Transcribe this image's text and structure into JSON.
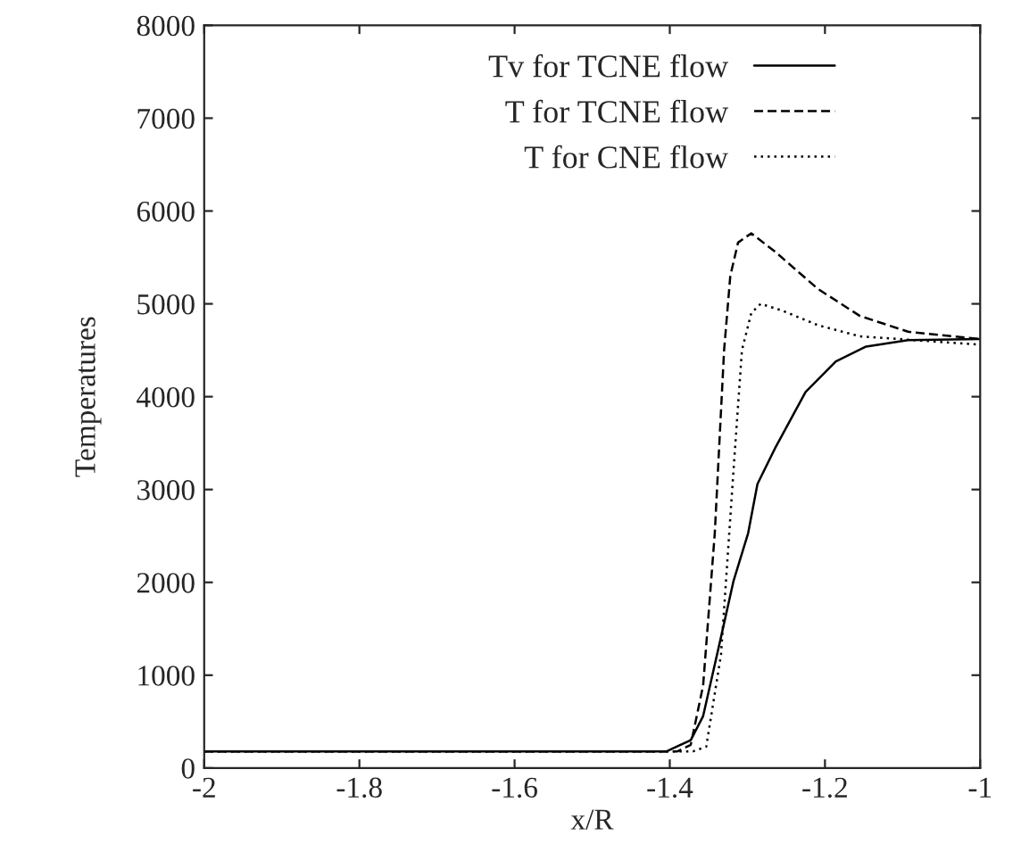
{
  "chart_data": {
    "type": "line",
    "xlabel": "x/R",
    "ylabel": "Temperatures",
    "xlim": [
      -2,
      -1
    ],
    "ylim": [
      0,
      8000
    ],
    "xticks": [
      -2,
      -1.8,
      -1.6,
      -1.4,
      -1.2,
      -1
    ],
    "yticks": [
      0,
      1000,
      2000,
      3000,
      4000,
      5000,
      6000,
      7000,
      8000
    ],
    "grid": false,
    "legend": "top right",
    "series": [
      {
        "name": "Tv for TCNE flow",
        "color": "#000000",
        "line_style": "solid",
        "x": [
          -2,
          -1.404,
          -1.373,
          -1.357,
          -1.334,
          -1.318,
          -1.299,
          -1.287,
          -1.264,
          -1.225,
          -1.186,
          -1.147,
          -1.093,
          -1.0
        ],
        "values": [
          180,
          180,
          300,
          560,
          1410,
          2010,
          2530,
          3060,
          3450,
          4050,
          4380,
          4540,
          4610,
          4620
        ]
      },
      {
        "name": "T for TCNE flow",
        "color": "#000000",
        "line_style": "dashed",
        "x": [
          -2,
          -1.39,
          -1.373,
          -1.357,
          -1.342,
          -1.33,
          -1.322,
          -1.312,
          -1.295,
          -1.264,
          -1.209,
          -1.155,
          -1.093,
          -1.0
        ],
        "values": [
          180,
          180,
          250,
          890,
          2530,
          4500,
          5300,
          5660,
          5760,
          5560,
          5160,
          4870,
          4700,
          4620
        ]
      },
      {
        "name": "T for CNE flow",
        "color": "#000000",
        "line_style": "dotted",
        "x": [
          -2,
          -1.37,
          -1.353,
          -1.334,
          -1.318,
          -1.307,
          -1.295,
          -1.283,
          -1.256,
          -1.209,
          -1.155,
          -1.0
        ],
        "values": [
          180,
          180,
          230,
          1220,
          3190,
          4500,
          4900,
          5000,
          4930,
          4770,
          4650,
          4560
        ]
      }
    ]
  }
}
